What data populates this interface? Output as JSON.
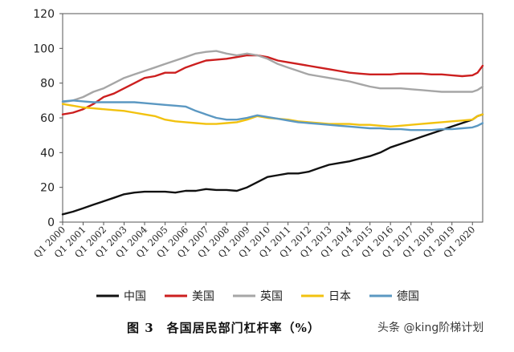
{
  "chart_data": {
    "type": "line",
    "ylim": [
      0,
      120
    ],
    "yticks": [
      0,
      20,
      40,
      60,
      80,
      100,
      120
    ],
    "grid": false,
    "legend_position": "bottom",
    "x_tick_labels": [
      "Q1 2000",
      "Q1 2001",
      "Q1 2002",
      "Q1 2003",
      "Q1 2004",
      "Q1 2005",
      "Q1 2006",
      "Q1 2007",
      "Q1 2008",
      "Q1 2009",
      "Q1 2010",
      "Q1 2011",
      "Q1 2012",
      "Q1 2013",
      "Q1 2014",
      "Q1 2015",
      "Q1 2016",
      "Q1 2017",
      "Q1 2018",
      "Q1 2019",
      "Q1 2020"
    ],
    "x": [
      2000.0,
      2000.5,
      2001.0,
      2001.5,
      2002.0,
      2002.5,
      2003.0,
      2003.5,
      2004.0,
      2004.5,
      2005.0,
      2005.5,
      2006.0,
      2006.5,
      2007.0,
      2007.5,
      2008.0,
      2008.5,
      2009.0,
      2009.5,
      2010.0,
      2010.5,
      2011.0,
      2011.5,
      2012.0,
      2012.5,
      2013.0,
      2013.5,
      2014.0,
      2014.5,
      2015.0,
      2015.5,
      2016.0,
      2016.5,
      2017.0,
      2017.5,
      2018.0,
      2018.5,
      2019.0,
      2019.5,
      2020.0,
      2020.25,
      2020.5
    ],
    "series": [
      {
        "name": "中国",
        "color": "#111111",
        "values": [
          4.5,
          6,
          8,
          10,
          12,
          14,
          16,
          17,
          17.5,
          17.5,
          17.5,
          17,
          18,
          18,
          19,
          18.5,
          18.5,
          18,
          20,
          23,
          26,
          27,
          28,
          28,
          29,
          31,
          33,
          34,
          35,
          36.5,
          38,
          40,
          43,
          45,
          47,
          49,
          51,
          53,
          55,
          57,
          59,
          61,
          62
        ]
      },
      {
        "name": "美国",
        "color": "#cc1f1f",
        "values": [
          62,
          63,
          65,
          68,
          72,
          74,
          77,
          80,
          83,
          84,
          86,
          86,
          89,
          91,
          93,
          93.5,
          94,
          95,
          96,
          96,
          95,
          93,
          92,
          91,
          90,
          89,
          88,
          87,
          86,
          85.5,
          85,
          85,
          85,
          85.5,
          85.5,
          85.5,
          85,
          85,
          84.5,
          84,
          84.5,
          86,
          90
        ]
      },
      {
        "name": "英国",
        "color": "#a6a6a6",
        "values": [
          69,
          70,
          72,
          75,
          77,
          80,
          83,
          85,
          87,
          89,
          91,
          93,
          95,
          97,
          98,
          98.5,
          97,
          96,
          97,
          96,
          94,
          91,
          89,
          87,
          85,
          84,
          83,
          82,
          81,
          79.5,
          78,
          77,
          77,
          77,
          76.5,
          76,
          75.5,
          75,
          75,
          75,
          75,
          76,
          78
        ]
      },
      {
        "name": "日本",
        "color": "#f2c20f",
        "values": [
          68,
          67,
          66,
          65.5,
          65,
          64.5,
          64,
          63,
          62,
          61,
          59,
          58,
          57.5,
          57,
          56.5,
          56.5,
          57,
          57.5,
          59,
          61,
          60,
          59.5,
          59,
          58,
          57.5,
          57,
          56.5,
          56.5,
          56.5,
          56,
          56,
          55.5,
          55,
          55.5,
          56,
          56.5,
          57,
          57.5,
          58,
          58.5,
          59,
          61,
          62
        ]
      },
      {
        "name": "德国",
        "color": "#5b98c2",
        "values": [
          69.5,
          70,
          69.5,
          69,
          69,
          69,
          69,
          69,
          68.5,
          68,
          67.5,
          67,
          66.5,
          64,
          62,
          60,
          59,
          59,
          60,
          61.5,
          60.5,
          59.5,
          58.5,
          57.5,
          57,
          56.5,
          56,
          55.5,
          55,
          54.5,
          54,
          54,
          53.5,
          53.5,
          53,
          53,
          53,
          53.5,
          53.5,
          54,
          54.5,
          55.5,
          57
        ]
      }
    ]
  },
  "caption": "图 3　各国居民部门杠杆率（%）",
  "watermark": "头条 @king阶梯计划"
}
